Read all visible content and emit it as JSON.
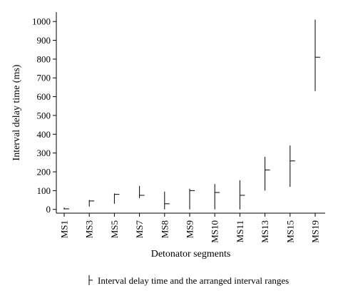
{
  "chart_data": {
    "type": "range",
    "categories": [
      "MS1",
      "MS3",
      "MS5",
      "MS7",
      "MS8",
      "MS9",
      "MS10",
      "MS11",
      "MS13",
      "MS15",
      "MS19"
    ],
    "series": [
      {
        "name": "Interval delay time and the arranged interval ranges",
        "delay": [
          3,
          45,
          80,
          75,
          30,
          100,
          90,
          75,
          210,
          258,
          810
        ],
        "low": [
          0,
          15,
          30,
          60,
          0,
          0,
          0,
          0,
          100,
          120,
          630
        ],
        "high": [
          10,
          50,
          85,
          125,
          95,
          110,
          135,
          155,
          280,
          340,
          1010
        ]
      }
    ],
    "xlabel": "Detonator segments",
    "ylabel": "Interval delay time (ms)",
    "ylim": [
      -20,
      1050
    ],
    "yticks": [
      0,
      100,
      200,
      300,
      400,
      500,
      600,
      700,
      800,
      900,
      1000
    ],
    "grid": false,
    "legend_position": "bottom-center"
  }
}
